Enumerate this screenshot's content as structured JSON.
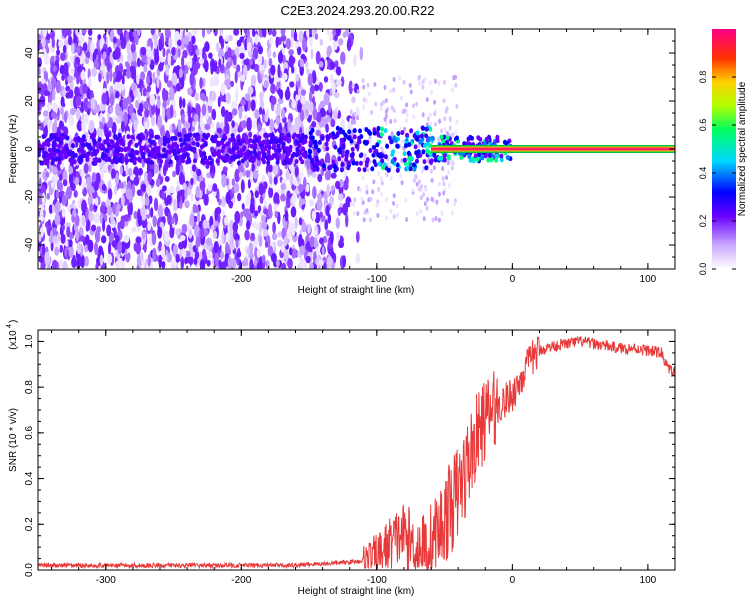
{
  "title": "C2E3.2024.293.20.00.R22",
  "chart_data": [
    {
      "type": "heatmap",
      "xlabel": "Height of straight line (km)",
      "ylabel": "Frequency (Hz)",
      "xlim": [
        -350,
        120
      ],
      "ylim": [
        -50,
        50
      ],
      "xticks": [
        -300,
        -200,
        -100,
        0,
        100
      ],
      "yticks": [
        -40,
        -20,
        0,
        20,
        40
      ],
      "xtick_labels": [
        "-300",
        "-200",
        "-100",
        "0",
        "100"
      ],
      "ytick_labels": [
        "-40",
        "-20",
        "0",
        "20",
        "40"
      ],
      "colorbar": {
        "label": "Normalized spectral amplitude",
        "range": [
          0,
          1
        ],
        "ticks": [
          0.0,
          0.2,
          0.4,
          0.6,
          0.8
        ],
        "tick_labels": [
          "0.0",
          "0.2",
          "0.4",
          "0.6",
          "0.8"
        ],
        "colormap": [
          "#ffffff",
          "#7b2cff",
          "#0000ff",
          "#00d8ff",
          "#00ff40",
          "#e8ff00",
          "#ff8800",
          "#ff0000",
          "#ff0088"
        ]
      },
      "signal_band": {
        "x_start": -60,
        "x_end": 120,
        "frequency_hz": 0,
        "peak_value": 1.0
      }
    },
    {
      "type": "line",
      "xlabel": "Height of straight line (km)",
      "ylabel": "SNR (10 * v/v)",
      "scale_label": "(x10",
      "scale_exponent": "4",
      "xlim": [
        -350,
        120
      ],
      "ylim": [
        0,
        1.05
      ],
      "xticks": [
        -300,
        -200,
        -100,
        0,
        100
      ],
      "yticks": [
        0.0,
        0.2,
        0.4,
        0.6,
        0.8,
        1.0
      ],
      "xtick_labels": [
        "-300",
        "-200",
        "-100",
        "0",
        "100"
      ],
      "ytick_labels": [
        "0.0",
        "0.2",
        "0.4",
        "0.6",
        "0.8",
        "1.0"
      ],
      "color": "#e8393a",
      "series": [
        {
          "x": [
            -350,
            -300,
            -250,
            -200,
            -160,
            -150,
            -130,
            -110,
            -100,
            -90,
            -80,
            -75,
            -70,
            -65,
            -60,
            -55,
            -50,
            -45,
            -40,
            -35,
            -30,
            -25,
            -20,
            -15,
            -10,
            -5,
            0,
            5,
            10,
            15,
            20,
            30,
            40,
            50,
            60,
            70,
            80,
            90,
            100,
            110,
            115,
            120
          ],
          "y": [
            0.02,
            0.02,
            0.02,
            0.02,
            0.02,
            0.025,
            0.03,
            0.04,
            0.06,
            0.12,
            0.16,
            0.12,
            0.09,
            0.09,
            0.12,
            0.16,
            0.22,
            0.28,
            0.34,
            0.42,
            0.52,
            0.6,
            0.66,
            0.7,
            0.72,
            0.74,
            0.77,
            0.82,
            0.88,
            0.93,
            0.96,
            0.98,
            0.99,
            1.0,
            0.99,
            0.98,
            0.97,
            0.97,
            0.96,
            0.95,
            0.88,
            0.86
          ]
        }
      ]
    }
  ]
}
